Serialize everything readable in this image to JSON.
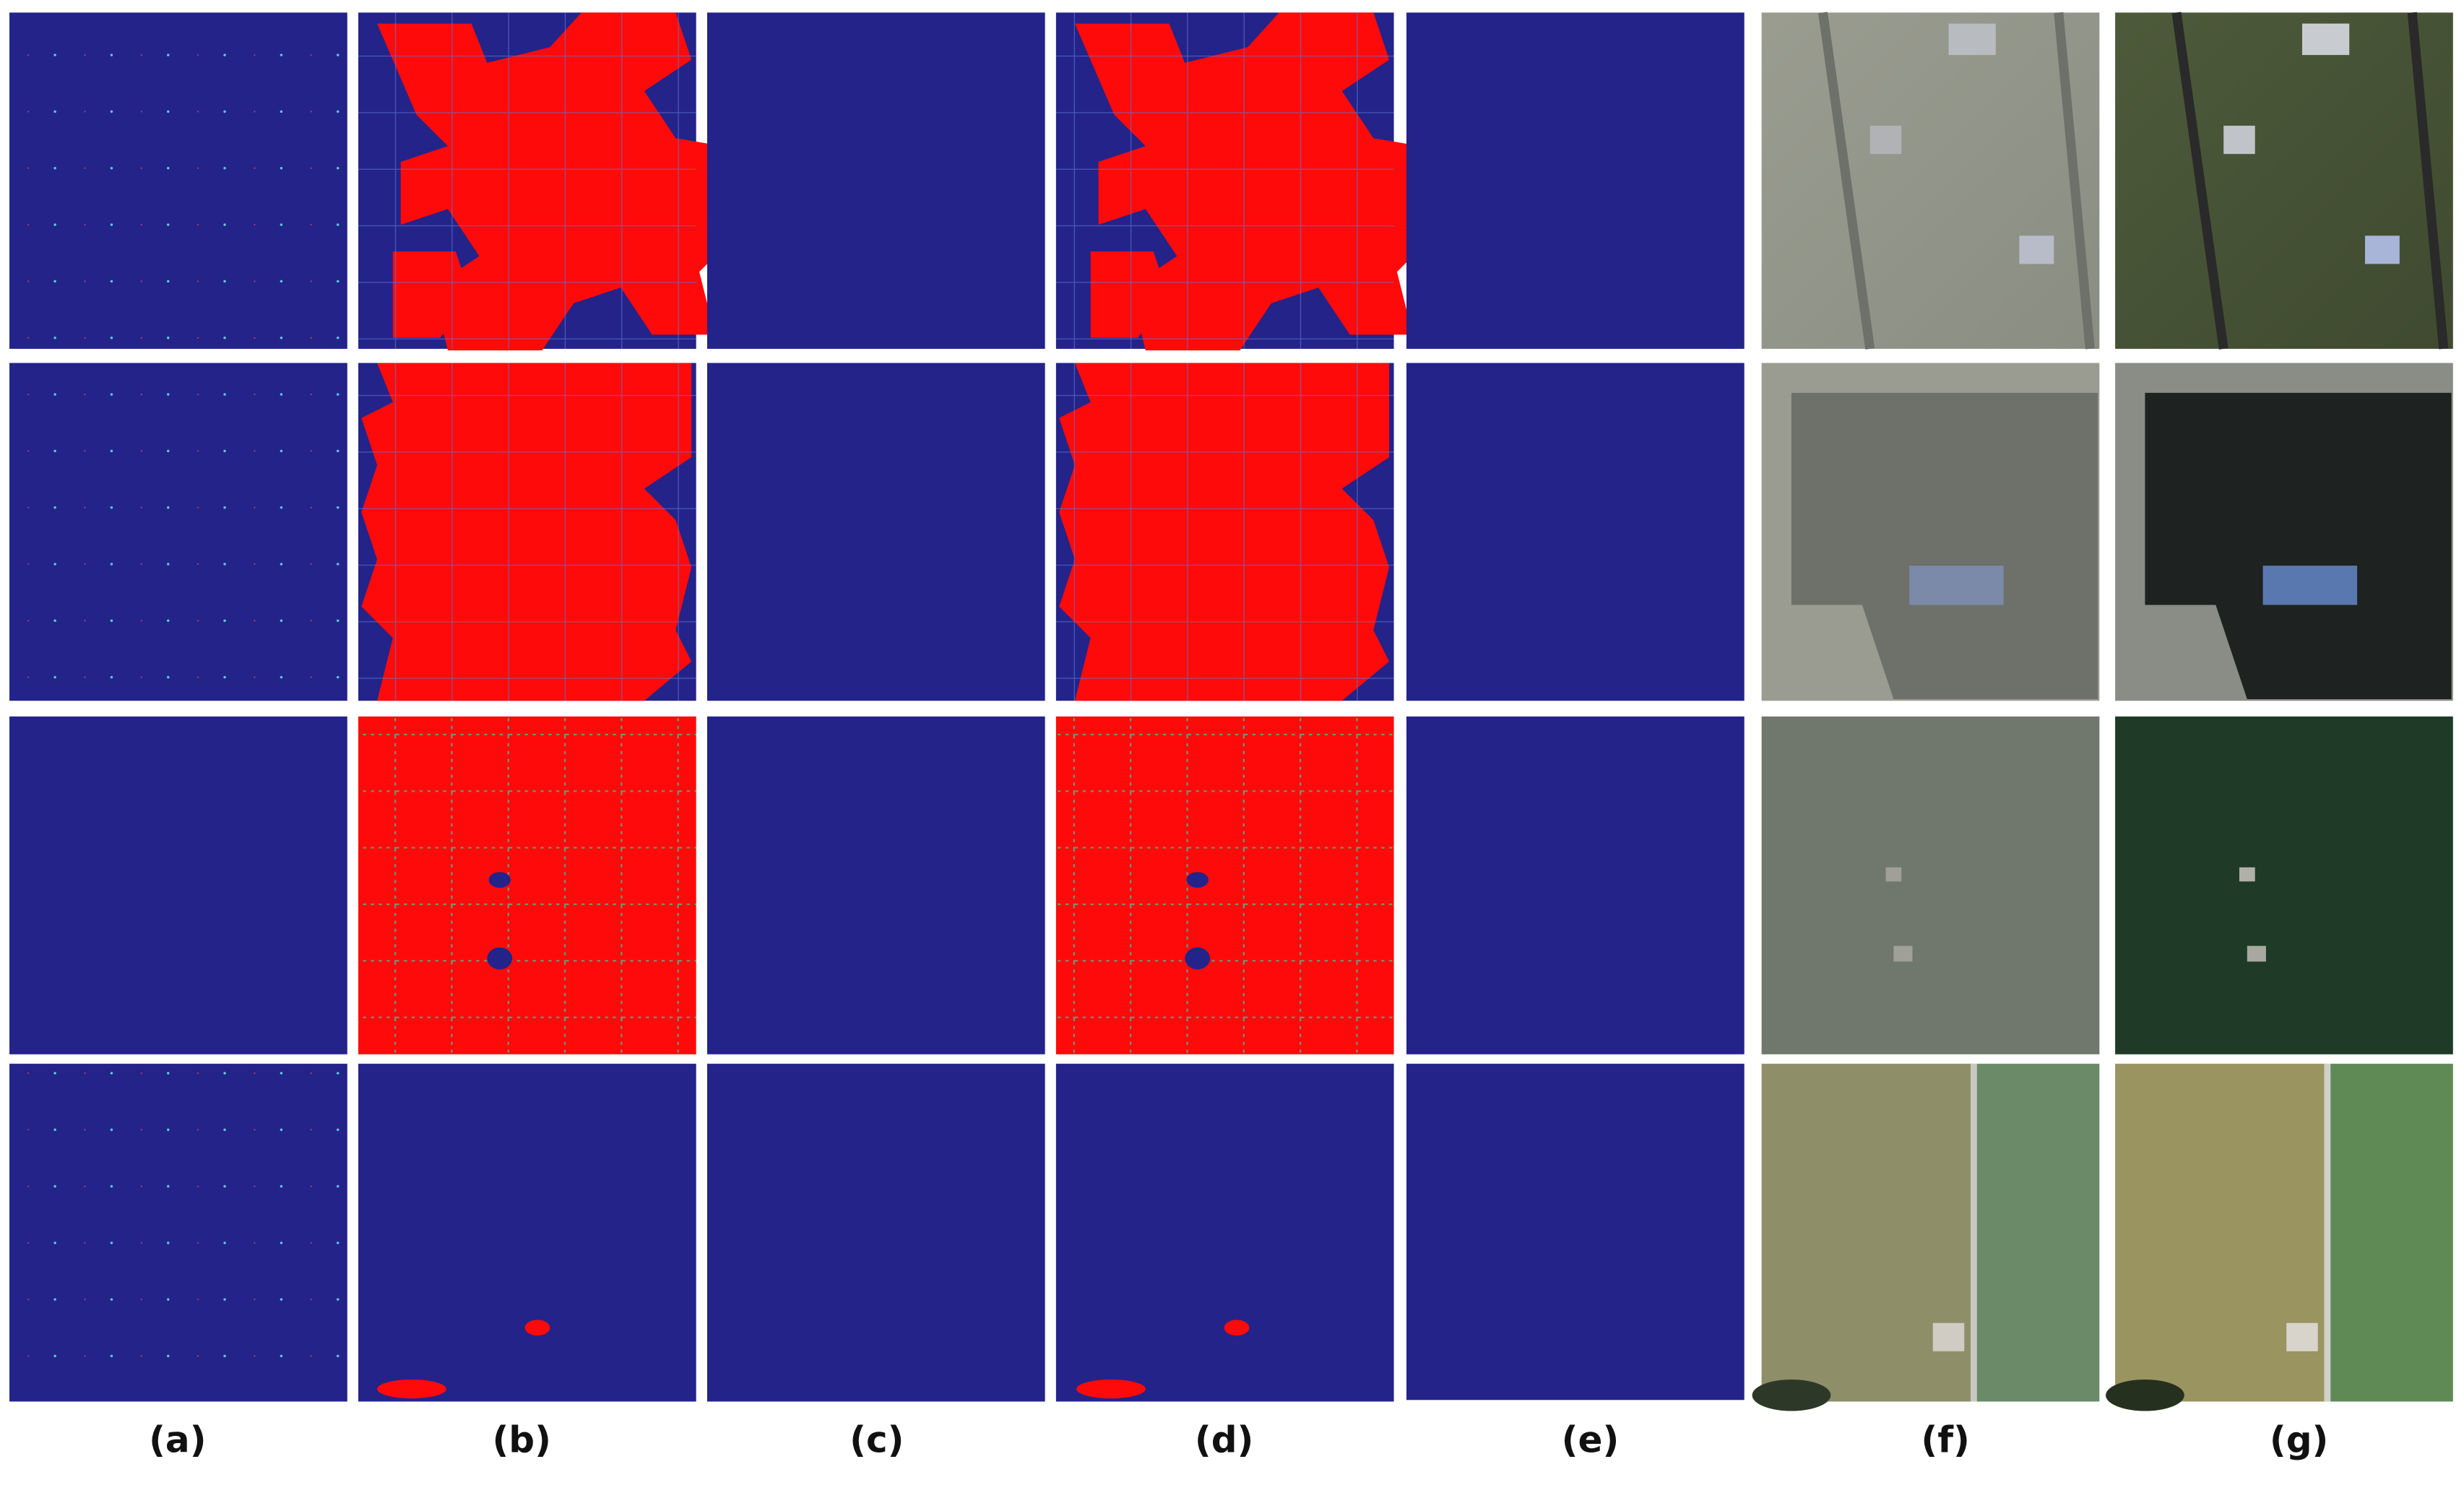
{
  "panel_labels": [
    "(a)",
    "(b)",
    "(c)",
    "(d)",
    "(e)",
    "(f)",
    "(g)"
  ]
}
